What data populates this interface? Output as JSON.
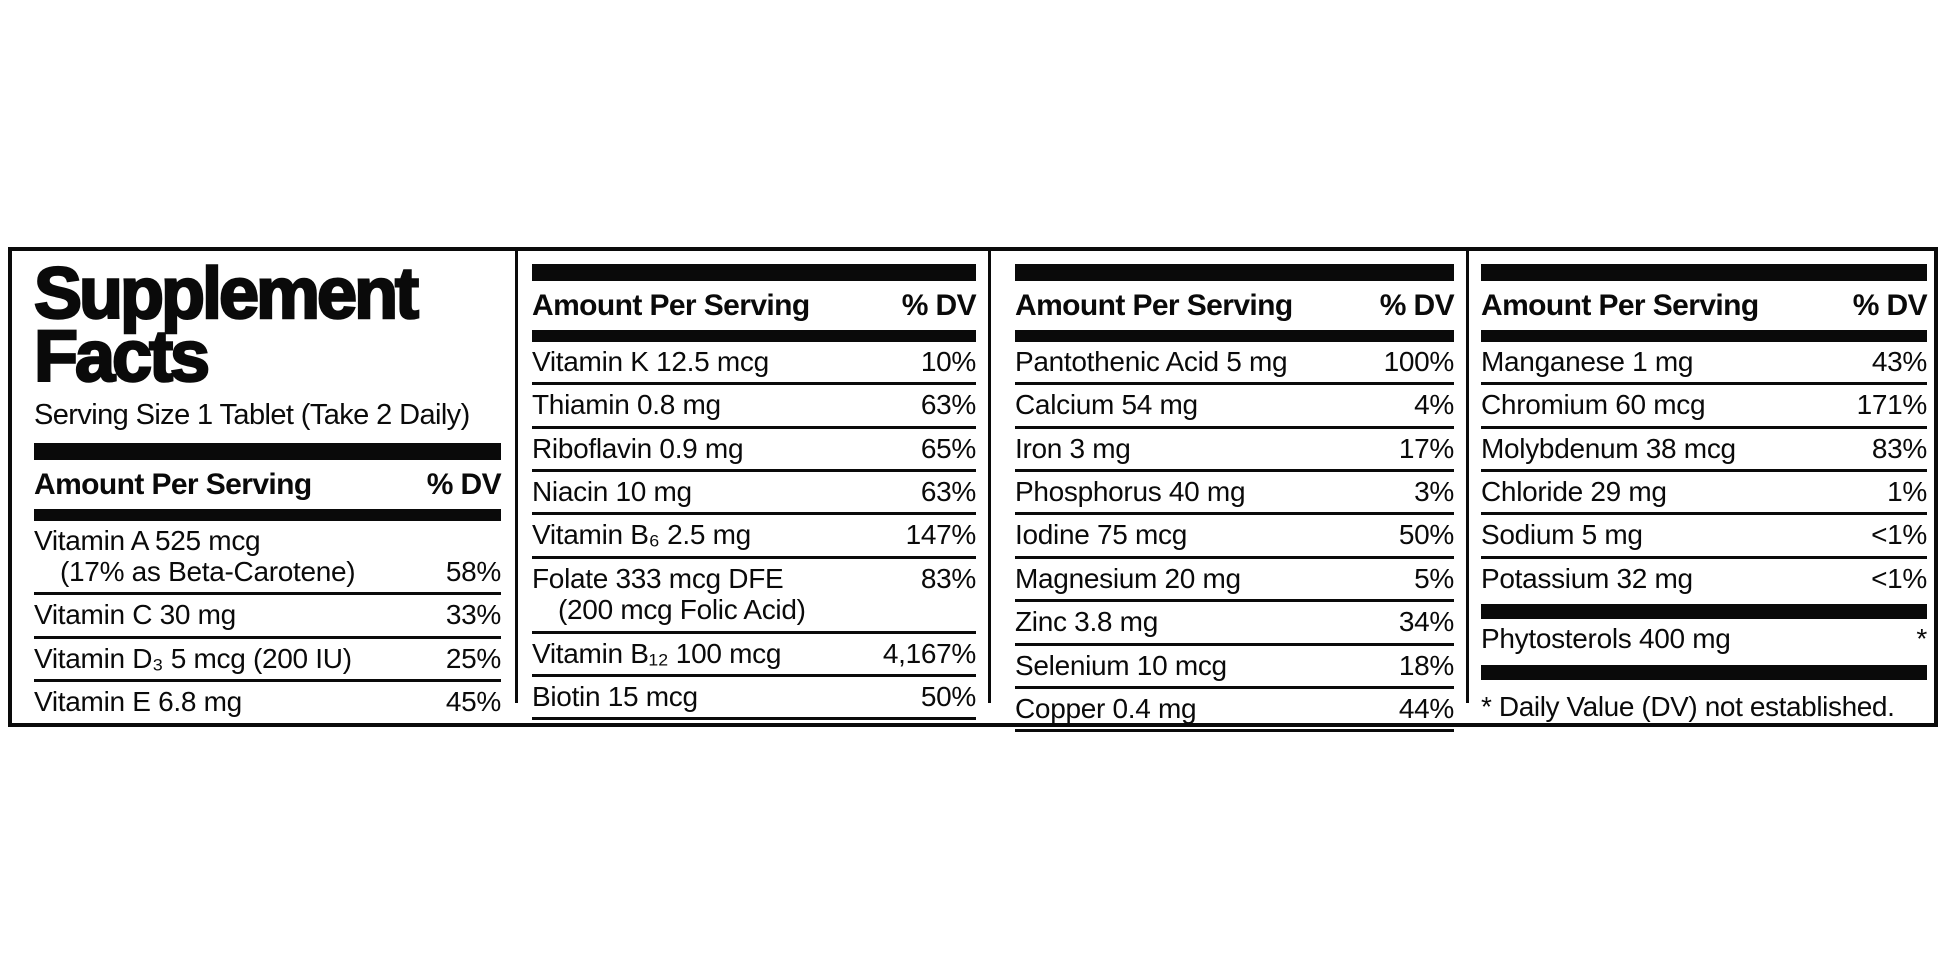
{
  "title": {
    "line1": "Supplement",
    "line2": "Facts"
  },
  "serving_size": "Serving Size 1 Tablet (Take 2 Daily)",
  "column_header": {
    "amount": "Amount Per Serving",
    "dv": "% DV"
  },
  "colors": {
    "ink": "#0a0a0a",
    "background": "#ffffff"
  },
  "columns": [
    {
      "rows": [
        {
          "line1": "Vitamin A 525 mcg",
          "line2": "(17% as Beta-Carotene)",
          "dv": "58%",
          "dv_line": 2
        },
        {
          "line1": "Vitamin C 30 mg",
          "dv": "33%"
        },
        {
          "line1": "Vitamin D₃ 5 mcg (200 IU)",
          "dv": "25%"
        },
        {
          "line1": "Vitamin E 6.8 mg",
          "dv": "45%"
        }
      ]
    },
    {
      "rows": [
        {
          "line1": "Vitamin K 12.5 mcg",
          "dv": "10%"
        },
        {
          "line1": "Thiamin 0.8 mg",
          "dv": "63%"
        },
        {
          "line1": "Riboflavin 0.9 mg",
          "dv": "65%"
        },
        {
          "line1": "Niacin 10 mg",
          "dv": "63%"
        },
        {
          "line1": "Vitamin B₆ 2.5 mg",
          "dv": "147%"
        },
        {
          "line1": "Folate 333 mcg DFE",
          "line2": "(200 mcg Folic Acid)",
          "dv": "83%",
          "dv_line": 1
        },
        {
          "line1": "Vitamin B₁₂ 100 mcg",
          "dv": "4,167%"
        },
        {
          "line1": "Biotin 15 mcg",
          "dv": "50%"
        }
      ]
    },
    {
      "rows": [
        {
          "line1": "Pantothenic Acid 5 mg",
          "dv": "100%"
        },
        {
          "line1": "Calcium 54 mg",
          "dv": "4%"
        },
        {
          "line1": "Iron 3 mg",
          "dv": "17%"
        },
        {
          "line1": "Phosphorus 40 mg",
          "dv": "3%"
        },
        {
          "line1": "Iodine 75 mcg",
          "dv": "50%"
        },
        {
          "line1": "Magnesium 20 mg",
          "dv": "5%"
        },
        {
          "line1": "Zinc 3.8 mg",
          "dv": "34%"
        },
        {
          "line1": "Selenium 10 mcg",
          "dv": "18%"
        },
        {
          "line1": "Copper 0.4 mg",
          "dv": "44%"
        }
      ]
    },
    {
      "rows": [
        {
          "line1": "Manganese 1 mg",
          "dv": "43%"
        },
        {
          "line1": "Chromium 60 mcg",
          "dv": "171%"
        },
        {
          "line1": "Molybdenum 38 mcg",
          "dv": "83%"
        },
        {
          "line1": "Chloride 29 mg",
          "dv": "1%"
        },
        {
          "line1": "Sodium 5 mg",
          "dv": "<1%"
        },
        {
          "line1": "Potassium 32 mg",
          "dv": "<1%",
          "no_rule": true
        },
        {
          "line1": "Phytosterols 400 mg",
          "dv": "*",
          "no_rule": true,
          "bar_above": true,
          "bar_below": true
        }
      ],
      "footnote": "* Daily Value (DV) not established."
    }
  ]
}
